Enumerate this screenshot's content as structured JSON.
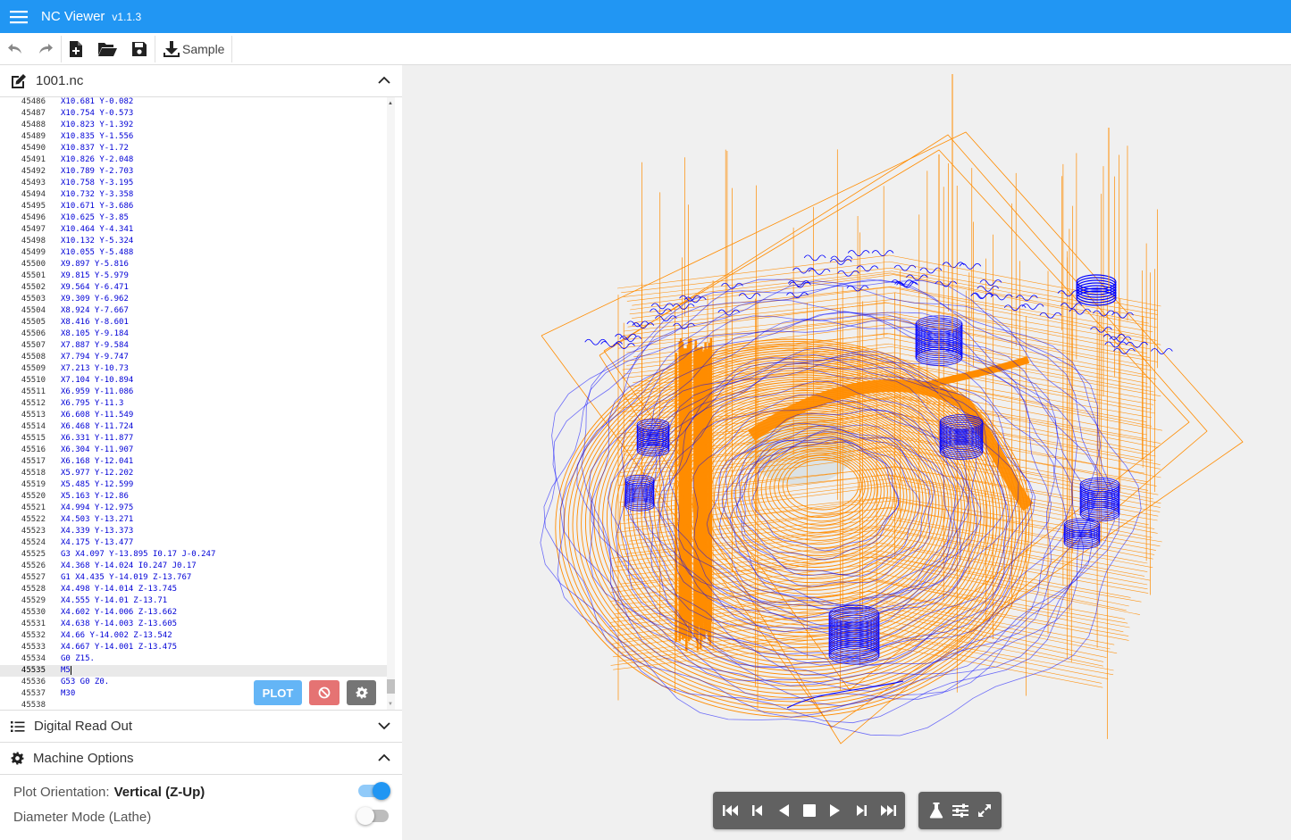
{
  "app": {
    "title": "NC Viewer",
    "version": "v1.1.3"
  },
  "toolbar": {
    "sample_label": "Sample"
  },
  "editor": {
    "file_name": "1001.nc",
    "active_line": "45535",
    "lines": [
      [
        "45486",
        "X10.681 Y-0.082"
      ],
      [
        "45487",
        "X10.754 Y-0.573"
      ],
      [
        "45488",
        "X10.823 Y-1.392"
      ],
      [
        "45489",
        "X10.835 Y-1.556"
      ],
      [
        "45490",
        "X10.837 Y-1.72"
      ],
      [
        "45491",
        "X10.826 Y-2.048"
      ],
      [
        "45492",
        "X10.789 Y-2.703"
      ],
      [
        "45493",
        "X10.758 Y-3.195"
      ],
      [
        "45494",
        "X10.732 Y-3.358"
      ],
      [
        "45495",
        "X10.671 Y-3.686"
      ],
      [
        "45496",
        "X10.625 Y-3.85"
      ],
      [
        "45497",
        "X10.464 Y-4.341"
      ],
      [
        "45498",
        "X10.132 Y-5.324"
      ],
      [
        "45499",
        "X10.055 Y-5.488"
      ],
      [
        "45500",
        "X9.897 Y-5.816"
      ],
      [
        "45501",
        "X9.815 Y-5.979"
      ],
      [
        "45502",
        "X9.564 Y-6.471"
      ],
      [
        "45503",
        "X9.309 Y-6.962"
      ],
      [
        "45504",
        "X8.924 Y-7.667"
      ],
      [
        "45505",
        "X8.416 Y-8.601"
      ],
      [
        "45506",
        "X8.105 Y-9.184"
      ],
      [
        "45507",
        "X7.887 Y-9.584"
      ],
      [
        "45508",
        "X7.794 Y-9.747"
      ],
      [
        "45509",
        "X7.213 Y-10.73"
      ],
      [
        "45510",
        "X7.104 Y-10.894"
      ],
      [
        "45511",
        "X6.959 Y-11.086"
      ],
      [
        "45512",
        "X6.795 Y-11.3"
      ],
      [
        "45513",
        "X6.608 Y-11.549"
      ],
      [
        "45514",
        "X6.468 Y-11.724"
      ],
      [
        "45515",
        "X6.331 Y-11.877"
      ],
      [
        "45516",
        "X6.304 Y-11.907"
      ],
      [
        "45517",
        "X6.168 Y-12.041"
      ],
      [
        "45518",
        "X5.977 Y-12.202"
      ],
      [
        "45519",
        "X5.485 Y-12.599"
      ],
      [
        "45520",
        "X5.163 Y-12.86"
      ],
      [
        "45521",
        "X4.994 Y-12.975"
      ],
      [
        "45522",
        "X4.503 Y-13.271"
      ],
      [
        "45523",
        "X4.339 Y-13.373"
      ],
      [
        "45524",
        "X4.175 Y-13.477"
      ],
      [
        "45525",
        "G3 X4.097 Y-13.895 I0.17 J-0.247"
      ],
      [
        "45526",
        "X4.368 Y-14.024 I0.247 J0.17"
      ],
      [
        "45527",
        "G1 X4.435 Y-14.019 Z-13.767"
      ],
      [
        "45528",
        "X4.498 Y-14.014 Z-13.745"
      ],
      [
        "45529",
        "X4.555 Y-14.01 Z-13.71"
      ],
      [
        "45530",
        "X4.602 Y-14.006 Z-13.662"
      ],
      [
        "45531",
        "X4.638 Y-14.003 Z-13.605"
      ],
      [
        "45532",
        "X4.66 Y-14.002 Z-13.542"
      ],
      [
        "45533",
        "X4.667 Y-14.001 Z-13.475"
      ],
      [
        "45534",
        "G0 Z15."
      ],
      [
        "45535",
        "M5"
      ],
      [
        "45536",
        "G53 G0 Z0."
      ],
      [
        "45537",
        "M30"
      ],
      [
        "45538",
        ""
      ]
    ],
    "plot_label": "PLOT"
  },
  "panels": {
    "dro_title": "Digital Read Out",
    "machine_title": "Machine Options"
  },
  "options": {
    "plot_orientation_label": "Plot Orientation:",
    "plot_orientation_value": "Vertical (Z-Up)",
    "plot_orientation_enabled": true,
    "diameter_mode_label": "Diameter Mode (Lathe)",
    "diameter_mode_enabled": false
  },
  "colors": {
    "accent": "#2196f3",
    "rapid_moves": "#ff8c00",
    "feed_moves": "#0000ff",
    "code_text": "#0000d6"
  },
  "icons": {
    "menu": "hamburger-icon",
    "undo": "undo-icon",
    "redo": "redo-icon",
    "new_file": "new-file-icon",
    "open_folder": "open-folder-icon",
    "save": "save-icon",
    "download": "download-icon",
    "edit": "edit-icon",
    "list": "list-icon",
    "gear": "gear-icon"
  }
}
